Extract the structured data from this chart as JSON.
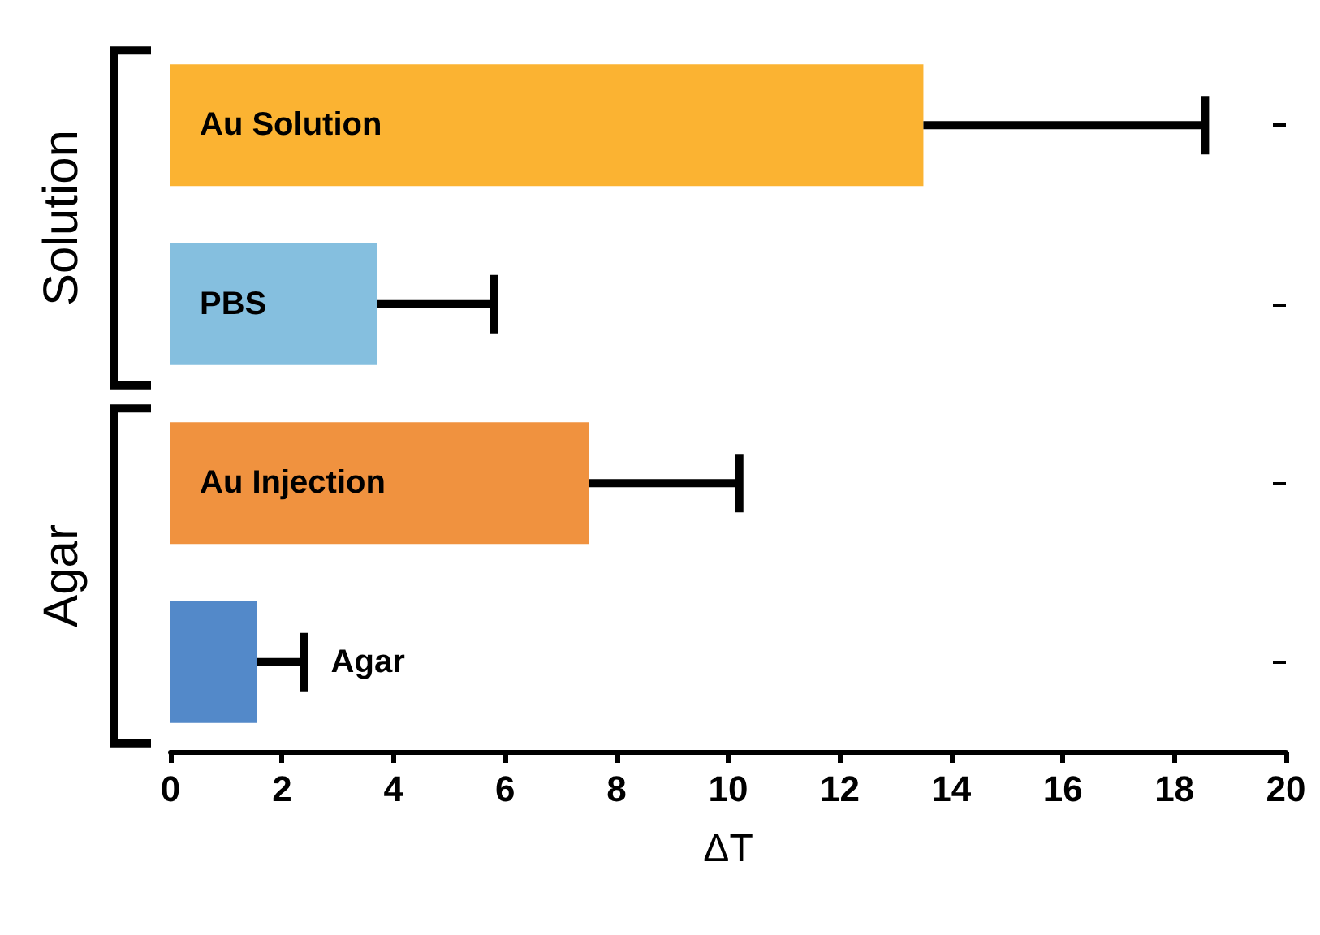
{
  "chart_data": {
    "type": "bar",
    "orientation": "horizontal",
    "categories": [
      "Au Solution",
      "PBS",
      "Au Injection",
      "Agar"
    ],
    "values": [
      13.5,
      3.7,
      7.5,
      1.55
    ],
    "colors": [
      "#fbb332",
      "#85bfdf",
      "#f0923f",
      "#5389c9"
    ],
    "errors": [
      [
        13.5,
        18.55
      ],
      [
        3.7,
        5.8
      ],
      [
        7.5,
        10.2
      ],
      [
        1.55,
        2.4
      ]
    ],
    "xlabel": "ΔT",
    "xlim": [
      0,
      20
    ],
    "xticks": [
      0,
      2,
      4,
      6,
      8,
      10,
      12,
      14,
      16,
      18,
      20
    ],
    "annotations": [
      "Solution",
      "Agar"
    ],
    "tick_labels": "x",
    "grid": false
  }
}
